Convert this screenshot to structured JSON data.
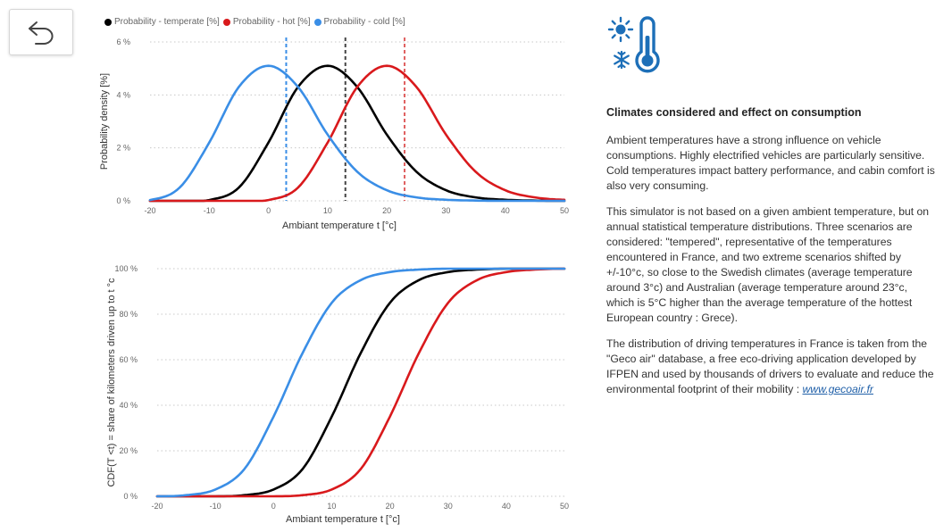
{
  "nav": {
    "back_icon": "undo-arrow-icon"
  },
  "legend": [
    {
      "label": "Probability - temperate [%]",
      "color": "#000000"
    },
    {
      "label": "Probability - hot [%]",
      "color": "#d9191c"
    },
    {
      "label": "Probability - cold [%]",
      "color": "#3a8ee6"
    }
  ],
  "icon": {
    "name": "weather-thermometer-icon",
    "color": "#1d6fb8"
  },
  "chart_data": [
    {
      "type": "line",
      "ylabel": "Probability density [%]",
      "xlabel": "Ambiant temperature t [°c]",
      "xlim": [
        -20,
        50
      ],
      "ylim": [
        0,
        6
      ],
      "x_ticks": [
        -20,
        -10,
        0,
        10,
        20,
        30,
        40,
        50
      ],
      "y_ticks": [
        0,
        2,
        4,
        6
      ],
      "y_tick_labels": [
        "0 %",
        "2 %",
        "4 %",
        "6 %"
      ],
      "x": [
        -20,
        -15,
        -10,
        -5,
        0,
        5,
        10,
        15,
        20,
        25,
        30,
        35,
        40,
        45,
        50
      ],
      "series": [
        {
          "name": "Probability - temperate [%]",
          "color": "#000000",
          "values": [
            0,
            0,
            0.03,
            0.5,
            2.2,
            4.3,
            5.1,
            4.3,
            2.5,
            1.1,
            0.4,
            0.13,
            0.04,
            0.01,
            0
          ]
        },
        {
          "name": "Probability - hot [%]",
          "color": "#d9191c",
          "values": [
            0,
            0,
            0,
            0,
            0.03,
            0.5,
            2.2,
            4.3,
            5.1,
            4.3,
            2.5,
            1.1,
            0.4,
            0.13,
            0.04
          ]
        },
        {
          "name": "Probability - cold [%]",
          "color": "#3a8ee6",
          "values": [
            0.03,
            0.5,
            2.2,
            4.3,
            5.1,
            4.3,
            2.5,
            1.1,
            0.4,
            0.13,
            0.04,
            0.01,
            0,
            0,
            0
          ]
        }
      ],
      "reference_lines": [
        {
          "x": 3,
          "color": "#3a8ee6"
        },
        {
          "x": 13,
          "color": "#444444"
        },
        {
          "x": 23,
          "color": "#e06060"
        }
      ]
    },
    {
      "type": "line",
      "ylabel": "CDF(T <t) = share of kilometers driven up to t °c",
      "xlabel": "Ambiant temperature t [°c]",
      "xlim": [
        -20,
        50
      ],
      "ylim": [
        0,
        100
      ],
      "x_ticks": [
        -20,
        -10,
        0,
        10,
        20,
        30,
        40,
        50
      ],
      "y_ticks": [
        0,
        20,
        40,
        60,
        80,
        100
      ],
      "y_tick_labels": [
        "0 %",
        "20 %",
        "40 %",
        "60 %",
        "80 %",
        "100 %"
      ],
      "x": [
        -20,
        -15,
        -10,
        -5,
        0,
        5,
        10,
        15,
        20,
        25,
        30,
        35,
        40,
        45,
        50
      ],
      "series": [
        {
          "name": "temperate",
          "color": "#000000",
          "values": [
            0,
            0,
            0,
            0.5,
            3,
            12,
            35,
            63,
            85,
            95,
            98.5,
            99.6,
            100,
            100,
            100
          ]
        },
        {
          "name": "hot",
          "color": "#d9191c",
          "values": [
            0,
            0,
            0,
            0,
            0,
            0.5,
            3,
            12,
            35,
            63,
            85,
            95,
            98.5,
            99.6,
            100
          ]
        },
        {
          "name": "cold",
          "color": "#3a8ee6",
          "values": [
            0,
            0.5,
            3,
            12,
            35,
            63,
            85,
            95,
            98.5,
            99.6,
            100,
            100,
            100,
            100,
            100
          ]
        }
      ]
    }
  ],
  "info": {
    "heading": "Climates considered and effect on consumption",
    "p1": "Ambient temperatures have a strong influence on vehicle consumptions. Highly electrified vehicles are particularly sensitive. Cold temperatures impact battery performance, and cabin comfort is also very consuming.",
    "p2": "This simulator is not based on a given ambient temperature, but on annual statistical temperature distributions. Three scenarios are considered: \"tempered\", representative of the temperatures encountered in France, and two extreme scenarios shifted by +/-10°c, so close to the Swedish climates (average temperature around 3°c) and Australian (average temperature around 23°c, which is 5°C higher than the average temperature of the hottest European country : Grece).",
    "p3": "The distribution of driving temperatures in France is taken from the \"Geco air\" database, a free eco-driving application developed by IFPEN and used by thousands of drivers to evaluate and reduce the environmental footprint of their mobility : ",
    "link": "www.gecoair.fr"
  }
}
